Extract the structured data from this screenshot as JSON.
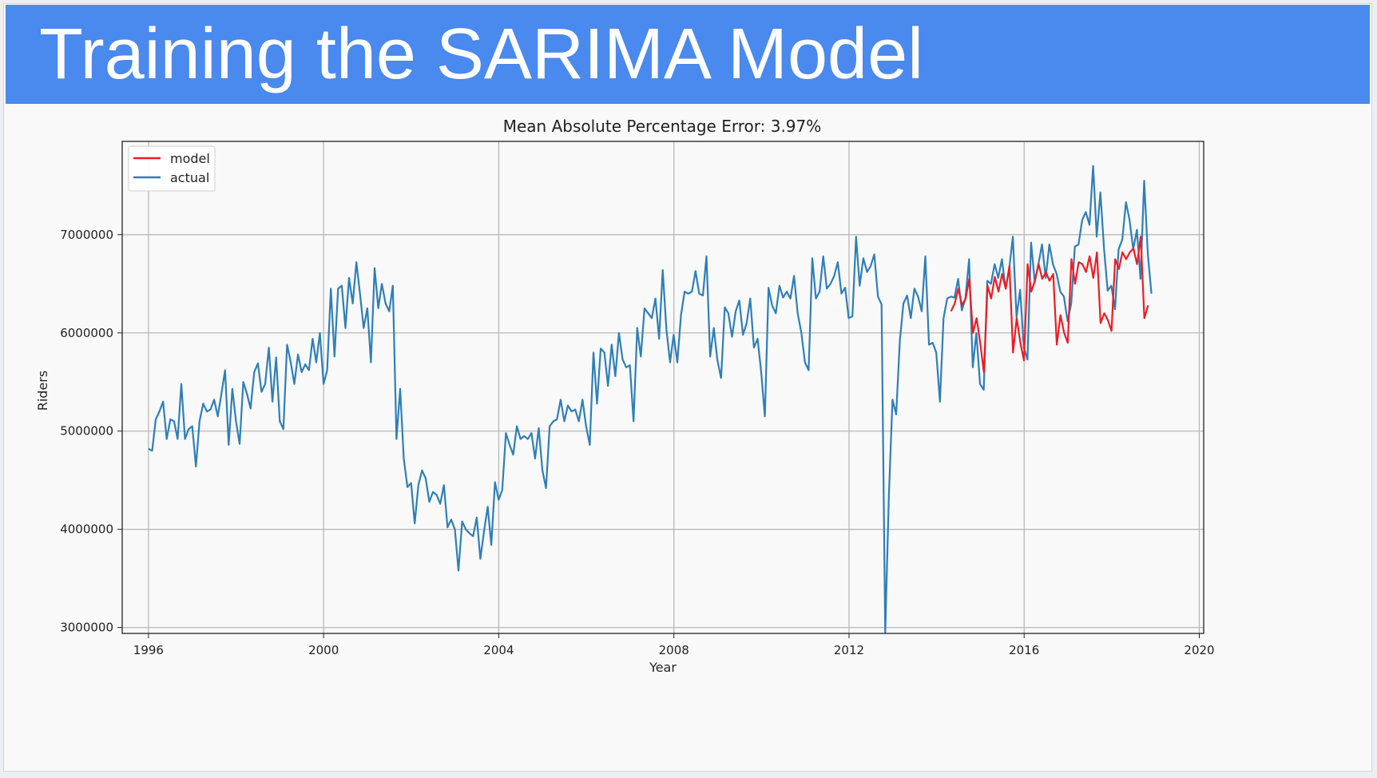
{
  "slide": {
    "title": "Training the SARIMA Model"
  },
  "chart_data": {
    "type": "line",
    "title": "Mean Absolute Percentage Error: 3.97%",
    "xlabel": "Year",
    "ylabel": "Riders",
    "xlim": [
      1995.4,
      2020.1
    ],
    "ylim": [
      2940000,
      7950000
    ],
    "x_ticks": [
      1996,
      2000,
      2004,
      2008,
      2012,
      2016,
      2020
    ],
    "y_ticks": [
      3000000,
      4000000,
      5000000,
      6000000,
      7000000
    ],
    "x_tick_labels": [
      "1996",
      "2000",
      "2004",
      "2008",
      "2012",
      "2016",
      "2020"
    ],
    "y_tick_labels": [
      "3000000",
      "4000000",
      "5000000",
      "6000000",
      "7000000"
    ],
    "grid": true,
    "legend_position": "top-left",
    "colors": {
      "model": "#ee1c25",
      "actual": "#2e7fb7"
    },
    "series": [
      {
        "name": "model",
        "color": "#ee1c25",
        "x_start": 2014.33,
        "step": 0.0833,
        "values": [
          6220000,
          6300000,
          6450000,
          6280000,
          6350000,
          6550000,
          6000000,
          6150000,
          5900000,
          5600000,
          6480000,
          6350000,
          6570000,
          6420000,
          6600000,
          6450000,
          6680000,
          5800000,
          6150000,
          5900000,
          5720000,
          6700000,
          6420000,
          6530000,
          6700000,
          6550000,
          6620000,
          6530000,
          6600000,
          5880000,
          6180000,
          6000000,
          5900000,
          6750000,
          6500000,
          6720000,
          6700000,
          6620000,
          6780000,
          6560000,
          6820000,
          6100000,
          6200000,
          6130000,
          6020000,
          6750000,
          6650000,
          6820000,
          6750000,
          6820000,
          6860000,
          6700000,
          6980000,
          6150000,
          6280000
        ]
      },
      {
        "name": "actual",
        "color": "#2e7fb7",
        "x_start": 1996.0,
        "step": 0.0833,
        "values": [
          4820000,
          4800000,
          5120000,
          5200000,
          5300000,
          4920000,
          5120000,
          5100000,
          4920000,
          5480000,
          4920000,
          5020000,
          5050000,
          4640000,
          5100000,
          5280000,
          5200000,
          5220000,
          5320000,
          5150000,
          5380000,
          5620000,
          4860000,
          5430000,
          5100000,
          4870000,
          5500000,
          5380000,
          5230000,
          5600000,
          5690000,
          5400000,
          5480000,
          5850000,
          5300000,
          5750000,
          5100000,
          5020000,
          5880000,
          5700000,
          5480000,
          5780000,
          5600000,
          5680000,
          5620000,
          5940000,
          5700000,
          6000000,
          5480000,
          5620000,
          6450000,
          5760000,
          6450000,
          6480000,
          6050000,
          6560000,
          6300000,
          6720000,
          6400000,
          6050000,
          6250000,
          5700000,
          6660000,
          6250000,
          6500000,
          6300000,
          6220000,
          6480000,
          4920000,
          5430000,
          4720000,
          4430000,
          4470000,
          4060000,
          4450000,
          4600000,
          4520000,
          4280000,
          4380000,
          4350000,
          4260000,
          4450000,
          4020000,
          4100000,
          4000000,
          3580000,
          4080000,
          4000000,
          3960000,
          3930000,
          4120000,
          3700000,
          3980000,
          4230000,
          3840000,
          4480000,
          4300000,
          4400000,
          4980000,
          4860000,
          4760000,
          5050000,
          4920000,
          4950000,
          4920000,
          4980000,
          4720000,
          5030000,
          4600000,
          4420000,
          5050000,
          5100000,
          5120000,
          5320000,
          5100000,
          5260000,
          5200000,
          5220000,
          5100000,
          5320000,
          5050000,
          4860000,
          5800000,
          5280000,
          5840000,
          5800000,
          5460000,
          5880000,
          5560000,
          6000000,
          5730000,
          5650000,
          5670000,
          5100000,
          6050000,
          5760000,
          6250000,
          6200000,
          6150000,
          6350000,
          5940000,
          6640000,
          6040000,
          5700000,
          5980000,
          5700000,
          6180000,
          6420000,
          6400000,
          6420000,
          6630000,
          6400000,
          6380000,
          6780000,
          5760000,
          6050000,
          5720000,
          5540000,
          6260000,
          6200000,
          5960000,
          6220000,
          6330000,
          5980000,
          6100000,
          6350000,
          5850000,
          5940000,
          5600000,
          5150000,
          6460000,
          6280000,
          6200000,
          6480000,
          6360000,
          6420000,
          6350000,
          6580000,
          6200000,
          6000000,
          5700000,
          5620000,
          6760000,
          6350000,
          6420000,
          6780000,
          6450000,
          6500000,
          6580000,
          6720000,
          6400000,
          6460000,
          6150000,
          6170000,
          6980000,
          6480000,
          6760000,
          6620000,
          6680000,
          6800000,
          6370000,
          6290000,
          2950000,
          4350000,
          5320000,
          5170000,
          5920000,
          6300000,
          6380000,
          6150000,
          6450000,
          6370000,
          6220000,
          6780000,
          5880000,
          5900000,
          5800000,
          5300000,
          6150000,
          6350000,
          6370000,
          6360000,
          6550000,
          6230000,
          6350000,
          6750000,
          5650000,
          6000000,
          5480000,
          5420000,
          6530000,
          6500000,
          6700000,
          6560000,
          6750000,
          6450000,
          6650000,
          6980000,
          6160000,
          6440000,
          5850000,
          5730000,
          6920000,
          6520000,
          6700000,
          6900000,
          6560000,
          6900000,
          6700000,
          6600000,
          6420000,
          6370000,
          6120000,
          6300000,
          6880000,
          6900000,
          7150000,
          7230000,
          7100000,
          7700000,
          6980000,
          7430000,
          6850000,
          6430000,
          6480000,
          6240000,
          6850000,
          6950000,
          7330000,
          7150000,
          6850000,
          7050000,
          6550000,
          7550000,
          6800000,
          6400000
        ]
      }
    ]
  }
}
